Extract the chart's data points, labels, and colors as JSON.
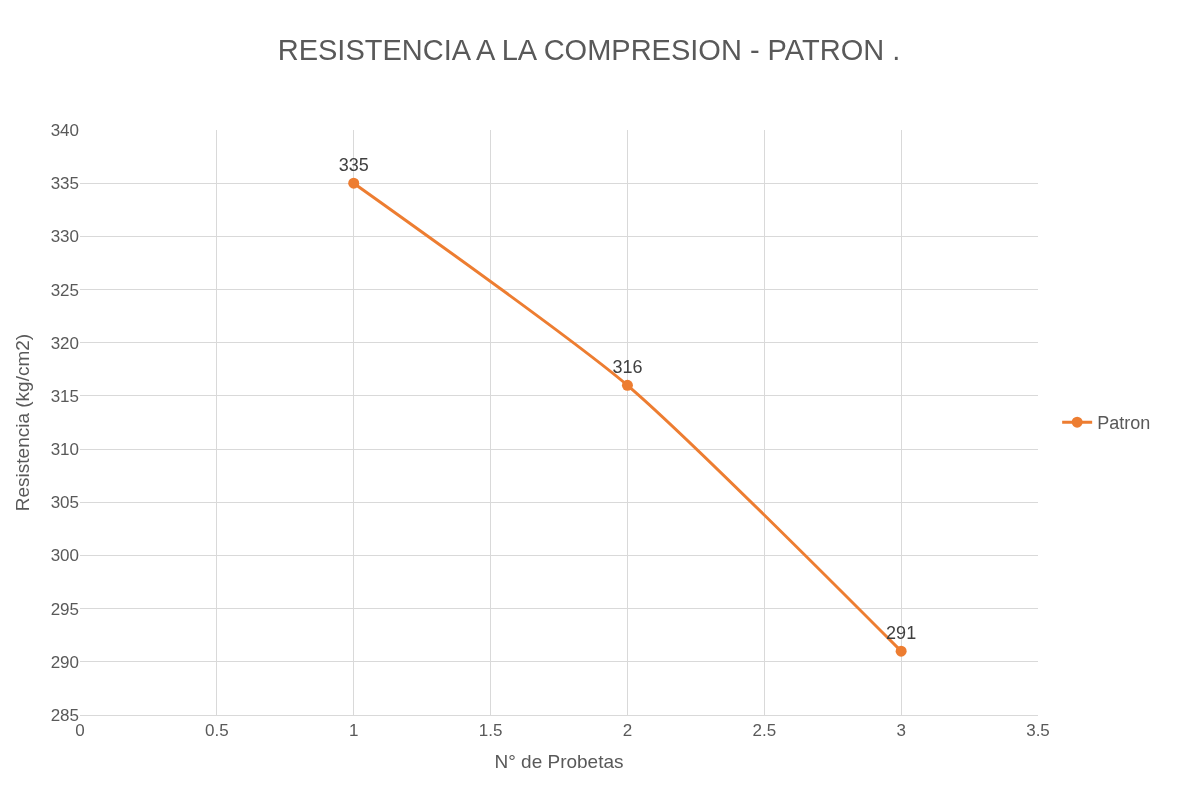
{
  "chart_data": {
    "type": "line",
    "title": "RESISTENCIA A LA COMPRESION - PATRON .",
    "xlabel": "N° de Probetas",
    "ylabel": "Resistencia (kg/cm2)",
    "x": [
      1,
      2,
      3
    ],
    "series": [
      {
        "name": "Patron",
        "color": "#ed7d31",
        "values": [
          335,
          316,
          291
        ]
      }
    ],
    "xlim": [
      0,
      3.5
    ],
    "xticks": [
      0,
      0.5,
      1,
      1.5,
      2,
      2.5,
      3,
      3.5
    ],
    "ylim": [
      285,
      340
    ],
    "yticks": [
      285,
      290,
      295,
      300,
      305,
      310,
      315,
      320,
      325,
      330,
      335,
      340
    ],
    "grid": true,
    "legend": "right",
    "marker": "circle",
    "line_style": "solid",
    "data_labels": true
  }
}
